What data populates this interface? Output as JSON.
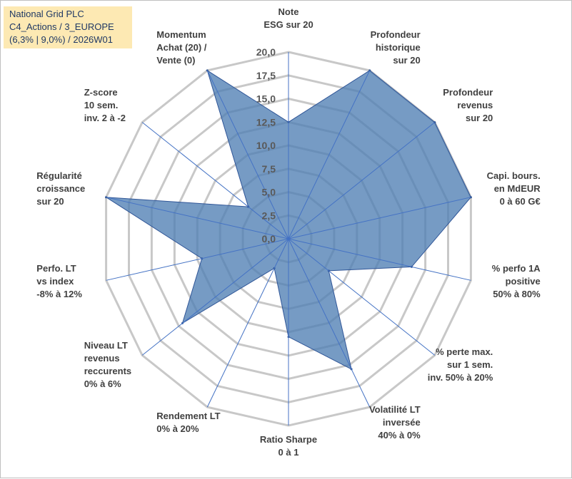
{
  "chart_data": {
    "type": "radar",
    "title_lines": [
      "National Grid PLC",
      "C4_Actions / 3_EUROPE",
      "(6,3% | 9,0%) / 2026W01"
    ],
    "rmin": 0,
    "rmax": 20,
    "ticks": [
      "0,0",
      "2,5",
      "5,0",
      "7,5",
      "10,0",
      "12,5",
      "15,0",
      "17,5",
      "20,0"
    ],
    "tick_values": [
      0,
      2.5,
      5,
      7.5,
      10,
      12.5,
      15,
      17.5,
      20
    ],
    "axes": [
      {
        "label": [
          "Note",
          "ESG sur 20"
        ],
        "value": 12.5
      },
      {
        "label": [
          "Profondeur",
          "historique",
          "sur 20"
        ],
        "value": 20
      },
      {
        "label": [
          "Profondeur",
          "revenus",
          "sur 20"
        ],
        "value": 20
      },
      {
        "label": [
          "Capi. bours.",
          "en MdEUR",
          "0 à 60 G€"
        ],
        "value": 20
      },
      {
        "label": [
          "% perfo 1A",
          "positive",
          "50% à 80%"
        ],
        "value": 13.5
      },
      {
        "label": [
          "% perte max.",
          "sur 1 sem.",
          "inv. 50% à 20%"
        ],
        "value": 5.5
      },
      {
        "label": [
          "Volatilité LT",
          "inversée",
          "40% à 0%"
        ],
        "value": 15.5
      },
      {
        "label": [
          "Ratio Sharpe",
          "0 à 1"
        ],
        "value": 10.5
      },
      {
        "label": [
          "Rendement LT",
          "0% à 20%"
        ],
        "value": 3.5
      },
      {
        "label": [
          "Niveau LT",
          "revenus",
          "reccurents",
          "0% à 6%"
        ],
        "value": 14.5
      },
      {
        "label": [
          "Perfo. LT",
          "vs index",
          "-8% à 12%"
        ],
        "value": 9.5
      },
      {
        "label": [
          "Régularité",
          "croissance",
          "sur 20"
        ],
        "value": 20
      },
      {
        "label": [
          "Z-score",
          "10 sem.",
          "inv. 2 à -2"
        ],
        "value": 5.5
      },
      {
        "label": [
          "Momentum",
          "Achat (20) /",
          "Vente (0)"
        ],
        "value": 20
      }
    ],
    "fill_color": "#4f7fb3",
    "fill_opacity": 0.78,
    "grid_color": "#c8c8c8",
    "spoke_color": "#4472c4"
  }
}
